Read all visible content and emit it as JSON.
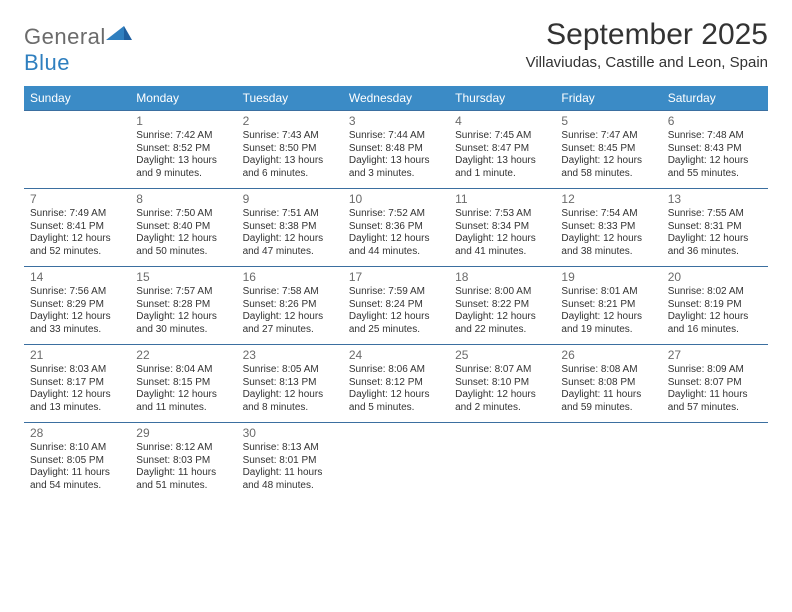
{
  "logo": {
    "text1": "General",
    "text2": "Blue",
    "text1_color": "#6b6b6b",
    "text2_color": "#2f7fbf",
    "mark_color": "#2f7fbf"
  },
  "title": "September 2025",
  "location": "Villaviudas, Castille and Leon, Spain",
  "header_bg": "#3b8bc6",
  "header_fg": "#ffffff",
  "rule_color": "#3b6fa0",
  "daynum_color": "#6b6b6b",
  "weekdays": [
    "Sunday",
    "Monday",
    "Tuesday",
    "Wednesday",
    "Thursday",
    "Friday",
    "Saturday"
  ],
  "weeks": [
    [
      null,
      {
        "n": "1",
        "sr": "Sunrise: 7:42 AM",
        "ss": "Sunset: 8:52 PM",
        "d1": "Daylight: 13 hours",
        "d2": "and 9 minutes."
      },
      {
        "n": "2",
        "sr": "Sunrise: 7:43 AM",
        "ss": "Sunset: 8:50 PM",
        "d1": "Daylight: 13 hours",
        "d2": "and 6 minutes."
      },
      {
        "n": "3",
        "sr": "Sunrise: 7:44 AM",
        "ss": "Sunset: 8:48 PM",
        "d1": "Daylight: 13 hours",
        "d2": "and 3 minutes."
      },
      {
        "n": "4",
        "sr": "Sunrise: 7:45 AM",
        "ss": "Sunset: 8:47 PM",
        "d1": "Daylight: 13 hours",
        "d2": "and 1 minute."
      },
      {
        "n": "5",
        "sr": "Sunrise: 7:47 AM",
        "ss": "Sunset: 8:45 PM",
        "d1": "Daylight: 12 hours",
        "d2": "and 58 minutes."
      },
      {
        "n": "6",
        "sr": "Sunrise: 7:48 AM",
        "ss": "Sunset: 8:43 PM",
        "d1": "Daylight: 12 hours",
        "d2": "and 55 minutes."
      }
    ],
    [
      {
        "n": "7",
        "sr": "Sunrise: 7:49 AM",
        "ss": "Sunset: 8:41 PM",
        "d1": "Daylight: 12 hours",
        "d2": "and 52 minutes."
      },
      {
        "n": "8",
        "sr": "Sunrise: 7:50 AM",
        "ss": "Sunset: 8:40 PM",
        "d1": "Daylight: 12 hours",
        "d2": "and 50 minutes."
      },
      {
        "n": "9",
        "sr": "Sunrise: 7:51 AM",
        "ss": "Sunset: 8:38 PM",
        "d1": "Daylight: 12 hours",
        "d2": "and 47 minutes."
      },
      {
        "n": "10",
        "sr": "Sunrise: 7:52 AM",
        "ss": "Sunset: 8:36 PM",
        "d1": "Daylight: 12 hours",
        "d2": "and 44 minutes."
      },
      {
        "n": "11",
        "sr": "Sunrise: 7:53 AM",
        "ss": "Sunset: 8:34 PM",
        "d1": "Daylight: 12 hours",
        "d2": "and 41 minutes."
      },
      {
        "n": "12",
        "sr": "Sunrise: 7:54 AM",
        "ss": "Sunset: 8:33 PM",
        "d1": "Daylight: 12 hours",
        "d2": "and 38 minutes."
      },
      {
        "n": "13",
        "sr": "Sunrise: 7:55 AM",
        "ss": "Sunset: 8:31 PM",
        "d1": "Daylight: 12 hours",
        "d2": "and 36 minutes."
      }
    ],
    [
      {
        "n": "14",
        "sr": "Sunrise: 7:56 AM",
        "ss": "Sunset: 8:29 PM",
        "d1": "Daylight: 12 hours",
        "d2": "and 33 minutes."
      },
      {
        "n": "15",
        "sr": "Sunrise: 7:57 AM",
        "ss": "Sunset: 8:28 PM",
        "d1": "Daylight: 12 hours",
        "d2": "and 30 minutes."
      },
      {
        "n": "16",
        "sr": "Sunrise: 7:58 AM",
        "ss": "Sunset: 8:26 PM",
        "d1": "Daylight: 12 hours",
        "d2": "and 27 minutes."
      },
      {
        "n": "17",
        "sr": "Sunrise: 7:59 AM",
        "ss": "Sunset: 8:24 PM",
        "d1": "Daylight: 12 hours",
        "d2": "and 25 minutes."
      },
      {
        "n": "18",
        "sr": "Sunrise: 8:00 AM",
        "ss": "Sunset: 8:22 PM",
        "d1": "Daylight: 12 hours",
        "d2": "and 22 minutes."
      },
      {
        "n": "19",
        "sr": "Sunrise: 8:01 AM",
        "ss": "Sunset: 8:21 PM",
        "d1": "Daylight: 12 hours",
        "d2": "and 19 minutes."
      },
      {
        "n": "20",
        "sr": "Sunrise: 8:02 AM",
        "ss": "Sunset: 8:19 PM",
        "d1": "Daylight: 12 hours",
        "d2": "and 16 minutes."
      }
    ],
    [
      {
        "n": "21",
        "sr": "Sunrise: 8:03 AM",
        "ss": "Sunset: 8:17 PM",
        "d1": "Daylight: 12 hours",
        "d2": "and 13 minutes."
      },
      {
        "n": "22",
        "sr": "Sunrise: 8:04 AM",
        "ss": "Sunset: 8:15 PM",
        "d1": "Daylight: 12 hours",
        "d2": "and 11 minutes."
      },
      {
        "n": "23",
        "sr": "Sunrise: 8:05 AM",
        "ss": "Sunset: 8:13 PM",
        "d1": "Daylight: 12 hours",
        "d2": "and 8 minutes."
      },
      {
        "n": "24",
        "sr": "Sunrise: 8:06 AM",
        "ss": "Sunset: 8:12 PM",
        "d1": "Daylight: 12 hours",
        "d2": "and 5 minutes."
      },
      {
        "n": "25",
        "sr": "Sunrise: 8:07 AM",
        "ss": "Sunset: 8:10 PM",
        "d1": "Daylight: 12 hours",
        "d2": "and 2 minutes."
      },
      {
        "n": "26",
        "sr": "Sunrise: 8:08 AM",
        "ss": "Sunset: 8:08 PM",
        "d1": "Daylight: 11 hours",
        "d2": "and 59 minutes."
      },
      {
        "n": "27",
        "sr": "Sunrise: 8:09 AM",
        "ss": "Sunset: 8:07 PM",
        "d1": "Daylight: 11 hours",
        "d2": "and 57 minutes."
      }
    ],
    [
      {
        "n": "28",
        "sr": "Sunrise: 8:10 AM",
        "ss": "Sunset: 8:05 PM",
        "d1": "Daylight: 11 hours",
        "d2": "and 54 minutes."
      },
      {
        "n": "29",
        "sr": "Sunrise: 8:12 AM",
        "ss": "Sunset: 8:03 PM",
        "d1": "Daylight: 11 hours",
        "d2": "and 51 minutes."
      },
      {
        "n": "30",
        "sr": "Sunrise: 8:13 AM",
        "ss": "Sunset: 8:01 PM",
        "d1": "Daylight: 11 hours",
        "d2": "and 48 minutes."
      },
      null,
      null,
      null,
      null
    ]
  ]
}
